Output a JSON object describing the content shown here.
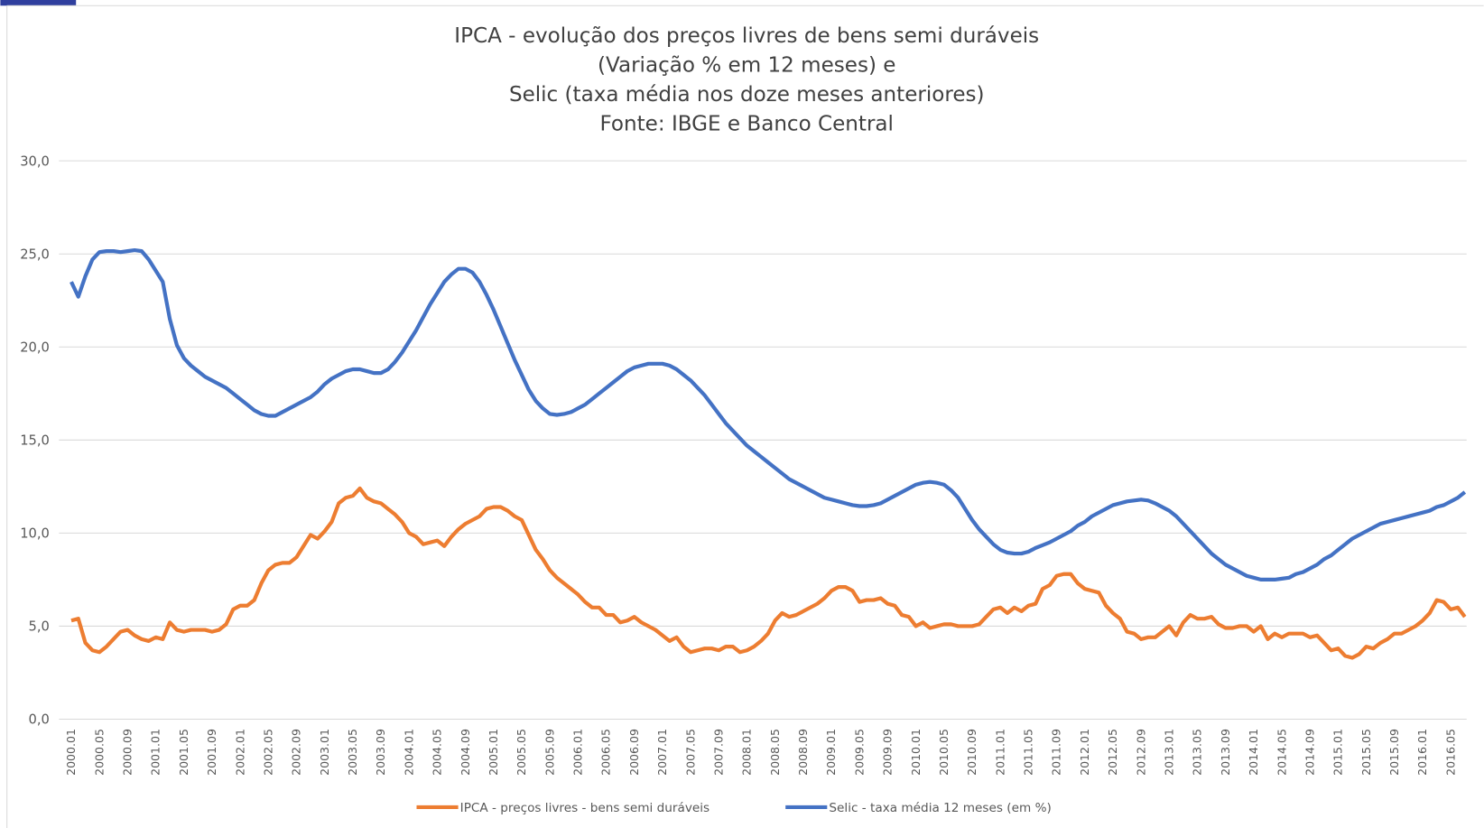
{
  "chart_data": {
    "type": "line",
    "title": [
      "IPCA - evolução dos preços livres de bens semi duráveis",
      "(Variação % em 12 meses) e",
      "Selic (taxa média nos doze meses anteriores)",
      "Fonte: IBGE e Banco Central"
    ],
    "categories": [
      "2000.01",
      null,
      null,
      null,
      "2000.05",
      null,
      null,
      null,
      "2000.09",
      null,
      null,
      null,
      "2001.01",
      null,
      null,
      null,
      "2001.05",
      null,
      null,
      null,
      "2001.09",
      null,
      null,
      null,
      "2002.01",
      null,
      null,
      null,
      "2002.05",
      null,
      null,
      null,
      "2002.09",
      null,
      null,
      null,
      "2003.01",
      null,
      null,
      null,
      "2003.05",
      null,
      null,
      null,
      "2003.09",
      null,
      null,
      null,
      "2004.01",
      null,
      null,
      null,
      "2004.05",
      null,
      null,
      null,
      "2004.09",
      null,
      null,
      null,
      "2005.01",
      null,
      null,
      null,
      "2005.05",
      null,
      null,
      null,
      "2005.09",
      null,
      null,
      null,
      "2006.01",
      null,
      null,
      null,
      "2006.05",
      null,
      null,
      null,
      "2006.09",
      null,
      null,
      null,
      "2007.01",
      null,
      null,
      null,
      "2007.05",
      null,
      null,
      null,
      "2007.09",
      null,
      null,
      null,
      "2008.01",
      null,
      null,
      null,
      "2008.05",
      null,
      null,
      null,
      "2008.09",
      null,
      null,
      null,
      "2009.01",
      null,
      null,
      null,
      "2009.05",
      null,
      null,
      null,
      "2009.09",
      null,
      null,
      null,
      "2010.01",
      null,
      null,
      null,
      "2010.05",
      null,
      null,
      null,
      "2010.09",
      null,
      null,
      null,
      "2011.01",
      null,
      null,
      null,
      "2011.05",
      null,
      null,
      null,
      "2011.09",
      null,
      null,
      null,
      "2012.01",
      null,
      null,
      null,
      "2012.05",
      null,
      null,
      null,
      "2012.09",
      null,
      null,
      null,
      "2013.01",
      null,
      null,
      null,
      "2013.05",
      null,
      null,
      null,
      "2013.09",
      null,
      null,
      null,
      "2014.01",
      null,
      null,
      null,
      "2014.05",
      null,
      null,
      null,
      "2014.09",
      null,
      null,
      null,
      "2015.01",
      null,
      null,
      null,
      "2015.05",
      null,
      null,
      null,
      "2015.09",
      null,
      null,
      null,
      "2016.01",
      null,
      null,
      null,
      "2016.05",
      null,
      null
    ],
    "series": [
      {
        "name": "IPCA - preços livres - bens semi duráveis",
        "color": "#ed7d31",
        "values": [
          5.3,
          5.4,
          4.1,
          3.7,
          3.6,
          3.9,
          4.3,
          4.7,
          4.8,
          4.5,
          4.3,
          4.2,
          4.4,
          4.3,
          5.2,
          4.8,
          4.7,
          4.8,
          4.8,
          4.8,
          4.7,
          4.8,
          5.1,
          5.9,
          6.1,
          6.1,
          6.4,
          7.3,
          8.0,
          8.3,
          8.4,
          8.4,
          8.7,
          9.3,
          9.9,
          9.7,
          10.1,
          10.6,
          11.6,
          11.9,
          12.0,
          12.4,
          11.9,
          11.7,
          11.6,
          11.3,
          11.0,
          10.6,
          10.0,
          9.8,
          9.4,
          9.5,
          9.6,
          9.3,
          9.8,
          10.2,
          10.5,
          10.7,
          10.9,
          11.3,
          11.4,
          11.4,
          11.2,
          10.9,
          10.7,
          9.9,
          9.1,
          8.6,
          8.0,
          7.6,
          7.3,
          7.0,
          6.7,
          6.3,
          6.0,
          6.0,
          5.6,
          5.6,
          5.2,
          5.3,
          5.5,
          5.2,
          5.0,
          4.8,
          4.5,
          4.2,
          4.4,
          3.9,
          3.6,
          3.7,
          3.8,
          3.8,
          3.7,
          3.9,
          3.9,
          3.6,
          3.7,
          3.9,
          4.2,
          4.6,
          5.3,
          5.7,
          5.5,
          5.6,
          5.8,
          6.0,
          6.2,
          6.5,
          6.9,
          7.1,
          7.1,
          6.9,
          6.3,
          6.4,
          6.4,
          6.5,
          6.2,
          6.1,
          5.6,
          5.5,
          5.0,
          5.2,
          4.9,
          5.0,
          5.1,
          5.1,
          5.0,
          5.0,
          5.0,
          5.1,
          5.5,
          5.9,
          6.0,
          5.7,
          6.0,
          5.8,
          6.1,
          6.2,
          7.0,
          7.2,
          7.7,
          7.8,
          7.8,
          7.3,
          7.0,
          6.9,
          6.8,
          6.1,
          5.7,
          5.4,
          4.7,
          4.6,
          4.3,
          4.4,
          4.4,
          4.7,
          5.0,
          4.5,
          5.2,
          5.6,
          5.4,
          5.4,
          5.5,
          5.1,
          4.9,
          4.9,
          5.0,
          5.0,
          4.7,
          5.0,
          4.3,
          4.6,
          4.4,
          4.6,
          4.6,
          4.6,
          4.4,
          4.5,
          4.1,
          3.7,
          3.8,
          3.4,
          3.3,
          3.5,
          3.9,
          3.8,
          4.1,
          4.3,
          4.6,
          4.6,
          4.8,
          5.0,
          5.3,
          5.7,
          6.4,
          6.3,
          5.9,
          6.0,
          5.5
        ]
      },
      {
        "name": "Selic - taxa média 12 meses (em %)",
        "color": "#4472c4",
        "values": [
          23.5,
          22.7,
          23.8,
          24.7,
          25.1,
          25.15,
          25.15,
          25.1,
          25.15,
          25.2,
          25.15,
          24.7,
          24.1,
          23.5,
          21.5,
          20.1,
          19.4,
          19.0,
          18.7,
          18.4,
          18.2,
          18.0,
          17.8,
          17.5,
          17.2,
          16.9,
          16.6,
          16.4,
          16.3,
          16.3,
          16.5,
          16.7,
          16.9,
          17.1,
          17.3,
          17.6,
          18.0,
          18.3,
          18.5,
          18.7,
          18.8,
          18.8,
          18.7,
          18.6,
          18.6,
          18.8,
          19.2,
          19.7,
          20.3,
          20.9,
          21.6,
          22.3,
          22.9,
          23.5,
          23.9,
          24.2,
          24.2,
          24.0,
          23.5,
          22.8,
          22.0,
          21.1,
          20.2,
          19.3,
          18.5,
          17.7,
          17.1,
          16.7,
          16.4,
          16.35,
          16.4,
          16.5,
          16.7,
          16.9,
          17.2,
          17.5,
          17.8,
          18.1,
          18.4,
          18.7,
          18.9,
          19.0,
          19.1,
          19.1,
          19.1,
          19.0,
          18.8,
          18.5,
          18.2,
          17.8,
          17.4,
          16.9,
          16.4,
          15.9,
          15.5,
          15.1,
          14.7,
          14.4,
          14.1,
          13.8,
          13.5,
          13.2,
          12.9,
          12.7,
          12.5,
          12.3,
          12.1,
          11.9,
          11.8,
          11.7,
          11.6,
          11.5,
          11.45,
          11.45,
          11.5,
          11.6,
          11.8,
          12.0,
          12.2,
          12.4,
          12.6,
          12.7,
          12.75,
          12.7,
          12.6,
          12.3,
          11.9,
          11.3,
          10.7,
          10.2,
          9.8,
          9.4,
          9.1,
          8.95,
          8.9,
          8.9,
          9.0,
          9.2,
          9.35,
          9.5,
          9.7,
          9.9,
          10.1,
          10.4,
          10.6,
          10.9,
          11.1,
          11.3,
          11.5,
          11.6,
          11.7,
          11.75,
          11.8,
          11.75,
          11.6,
          11.4,
          11.2,
          10.9,
          10.5,
          10.1,
          9.7,
          9.3,
          8.9,
          8.6,
          8.3,
          8.1,
          7.9,
          7.7,
          7.6,
          7.5,
          7.5,
          7.5,
          7.55,
          7.6,
          7.8,
          7.9,
          8.1,
          8.3,
          8.6,
          8.8,
          9.1,
          9.4,
          9.7,
          9.9,
          10.1,
          10.3,
          10.5,
          10.6,
          10.7,
          10.8,
          10.9,
          11.0,
          11.1,
          11.2,
          11.4,
          11.5,
          11.7,
          11.9,
          12.2
        ]
      }
    ],
    "ylim": [
      0,
      30
    ],
    "yticks": [
      {
        "value": 0,
        "label": "0,0"
      },
      {
        "value": 5,
        "label": "5,0"
      },
      {
        "value": 10,
        "label": "10,0"
      },
      {
        "value": 15,
        "label": "15,0"
      },
      {
        "value": 20,
        "label": "20,0"
      },
      {
        "value": 25,
        "label": "25,0"
      },
      {
        "value": 30,
        "label": "30,0"
      }
    ],
    "grid": true,
    "legend": "bottom"
  }
}
